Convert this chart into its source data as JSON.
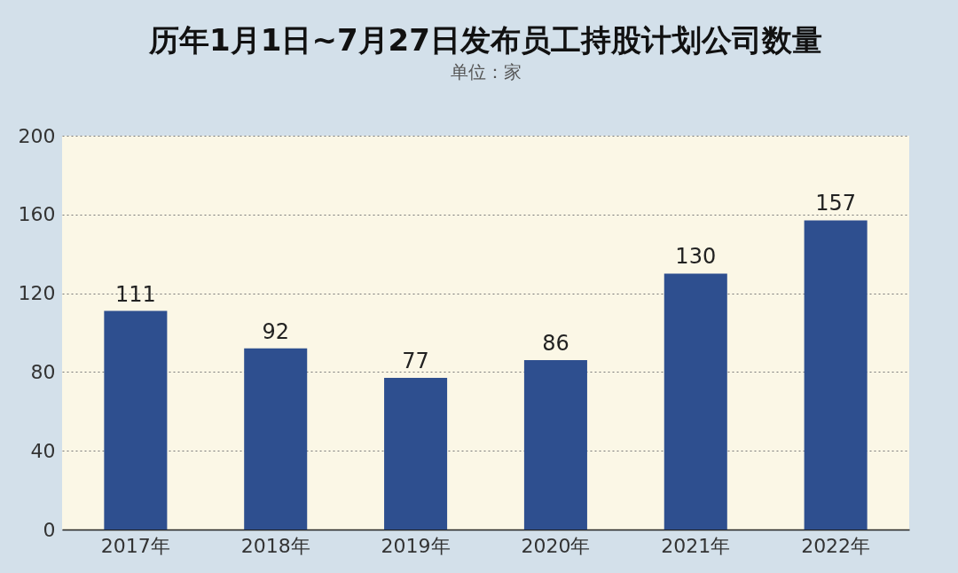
{
  "chart_data": {
    "type": "bar",
    "title": "历年1月1日~7月27日发布员工持股计划公司数量",
    "subtitle": "单位：家",
    "categories": [
      "2017年",
      "2018年",
      "2019年",
      "2020年",
      "2021年",
      "2022年"
    ],
    "values": [
      111,
      92,
      77,
      86,
      130,
      157
    ],
    "color": "#2e4f8f",
    "ylim": [
      0,
      200
    ],
    "yticks": [
      0,
      40,
      80,
      120,
      160,
      200
    ],
    "grid": "y",
    "data_labels": true
  }
}
